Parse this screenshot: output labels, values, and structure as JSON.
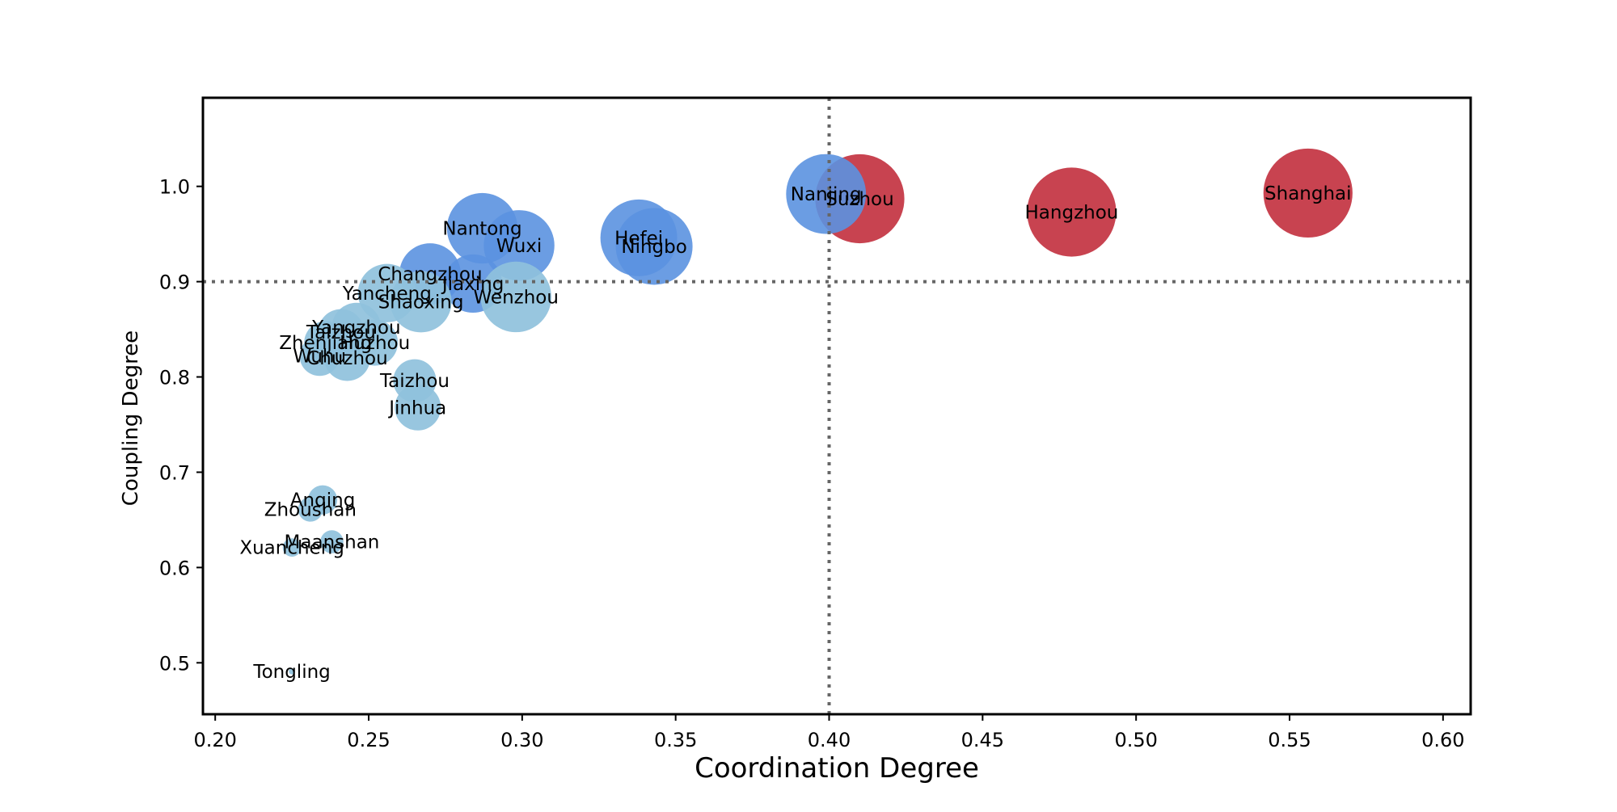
{
  "chart_data": {
    "type": "scatter",
    "title": "",
    "xlabel": "Coordination Degree",
    "ylabel": "Coupling Degree",
    "xlim": [
      0.196,
      0.609
    ],
    "ylim": [
      0.446,
      1.093
    ],
    "xticks": [
      0.2,
      0.25,
      0.3,
      0.35,
      0.4,
      0.45,
      0.5,
      0.55,
      0.6
    ],
    "xtick_labels": [
      "0.20",
      "0.25",
      "0.30",
      "0.35",
      "0.40",
      "0.45",
      "0.50",
      "0.55",
      "0.60"
    ],
    "yticks": [
      0.5,
      0.6,
      0.7,
      0.8,
      0.9,
      1.0
    ],
    "ytick_labels": [
      "0.5",
      "0.6",
      "0.7",
      "0.8",
      "0.9",
      "1.0"
    ],
    "grid": false,
    "reference_lines": {
      "x": 0.4,
      "y": 0.9
    },
    "colors": {
      "low": "#8fc1dc",
      "mid": "#5b92e0",
      "high": "#c22f3d"
    },
    "points": [
      {
        "name": "Shanghai",
        "x": 0.556,
        "y": 0.993,
        "size": 2.9,
        "group": "high"
      },
      {
        "name": "Hangzhou",
        "x": 0.479,
        "y": 0.973,
        "size": 2.9,
        "group": "high"
      },
      {
        "name": "Suzhou",
        "x": 0.41,
        "y": 0.987,
        "size": 2.9,
        "group": "high"
      },
      {
        "name": "Nanjing",
        "x": 0.399,
        "y": 0.992,
        "size": 2.6,
        "group": "mid"
      },
      {
        "name": "Hefei",
        "x": 0.338,
        "y": 0.946,
        "size": 2.5,
        "group": "mid"
      },
      {
        "name": "Ningbo",
        "x": 0.343,
        "y": 0.937,
        "size": 2.5,
        "group": "mid"
      },
      {
        "name": "Nantong",
        "x": 0.287,
        "y": 0.956,
        "size": 2.3,
        "group": "mid"
      },
      {
        "name": "Wuxi",
        "x": 0.299,
        "y": 0.938,
        "size": 2.3,
        "group": "mid"
      },
      {
        "name": "Changzhou",
        "x": 0.27,
        "y": 0.908,
        "size": 2.0,
        "group": "mid"
      },
      {
        "name": "Jiaxing",
        "x": 0.284,
        "y": 0.898,
        "size": 1.9,
        "group": "mid"
      },
      {
        "name": "Wenzhou",
        "x": 0.298,
        "y": 0.884,
        "size": 2.3,
        "group": "low"
      },
      {
        "name": "Shaoxing",
        "x": 0.267,
        "y": 0.879,
        "size": 2.0,
        "group": "low"
      },
      {
        "name": "Yancheng",
        "x": 0.256,
        "y": 0.888,
        "size": 1.9,
        "group": "low"
      },
      {
        "name": "Yangzhou",
        "x": 0.246,
        "y": 0.852,
        "size": 1.6,
        "group": "low"
      },
      {
        "name": "Taizhou",
        "x": 0.241,
        "y": 0.847,
        "size": 1.5,
        "group": "low"
      },
      {
        "name": "Huzhou",
        "x": 0.252,
        "y": 0.836,
        "size": 1.5,
        "group": "low"
      },
      {
        "name": "Zhenjiang",
        "x": 0.236,
        "y": 0.836,
        "size": 1.4,
        "group": "low"
      },
      {
        "name": "Chuzhou",
        "x": 0.243,
        "y": 0.82,
        "size": 1.5,
        "group": "low"
      },
      {
        "name": "Wuhu",
        "x": 0.234,
        "y": 0.822,
        "size": 1.3,
        "group": "low"
      },
      {
        "name": "Taizhou",
        "x": 0.265,
        "y": 0.796,
        "size": 1.4,
        "group": "low"
      },
      {
        "name": "Jinhua",
        "x": 0.266,
        "y": 0.768,
        "size": 1.5,
        "group": "low"
      },
      {
        "name": "Anqing",
        "x": 0.235,
        "y": 0.671,
        "size": 0.95,
        "group": "low"
      },
      {
        "name": "Zhoushan",
        "x": 0.231,
        "y": 0.661,
        "size": 0.8,
        "group": "low"
      },
      {
        "name": "Maanshan",
        "x": 0.238,
        "y": 0.627,
        "size": 0.75,
        "group": "low"
      },
      {
        "name": "Xuancheng",
        "x": 0.225,
        "y": 0.621,
        "size": 0.6,
        "group": "low"
      },
      {
        "name": "Tongling",
        "x": 0.225,
        "y": 0.491,
        "size": 0.2,
        "group": "low"
      }
    ]
  }
}
